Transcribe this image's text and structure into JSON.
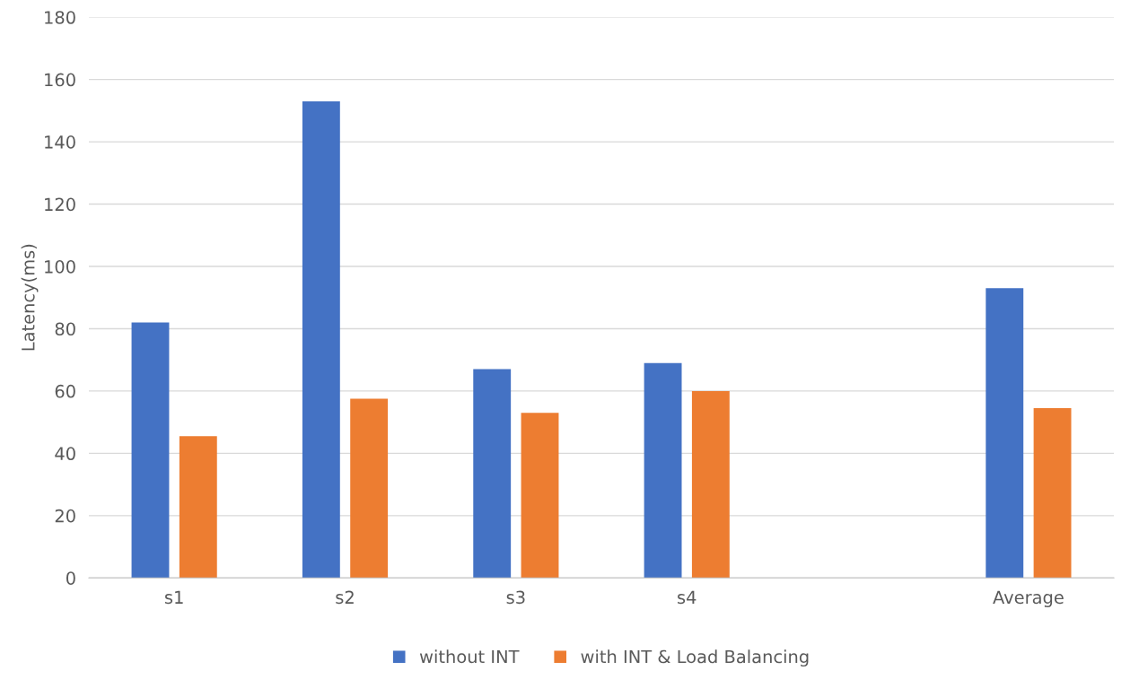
{
  "chart_data": {
    "type": "bar",
    "ylabel": "Latency(ms)",
    "categories": [
      "s1",
      "s2",
      "s3",
      "s4",
      null,
      "Average"
    ],
    "series": [
      {
        "name": "without INT",
        "color": "#4472c4",
        "values": [
          82,
          153,
          67,
          69,
          null,
          93
        ]
      },
      {
        "name": "with INT & Load Balancing",
        "color": "#ed7d31",
        "values": [
          45.5,
          57.5,
          53,
          60,
          null,
          54.5
        ]
      }
    ],
    "ylim": [
      0,
      180
    ],
    "yticks": [
      0,
      20,
      40,
      60,
      80,
      100,
      120,
      140,
      160,
      180
    ],
    "grid": "y",
    "legend": "bottom"
  }
}
